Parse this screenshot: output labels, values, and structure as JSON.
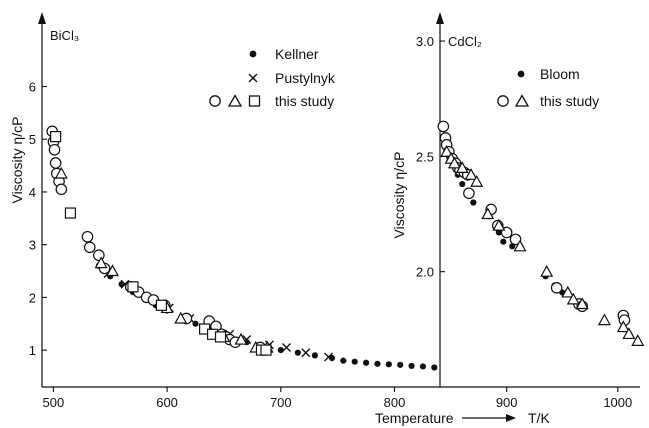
{
  "chart_data": [
    {
      "type": "scatter",
      "panel_label": "BiCl₃",
      "ylabel": "Viscosity  η/cP",
      "xlim": [
        490,
        840
      ],
      "ylim": [
        0.3,
        7.3
      ],
      "x_ticks": [
        500,
        600,
        700,
        800
      ],
      "y_ticks": [
        1,
        2,
        3,
        4,
        5,
        6
      ],
      "legend": {
        "placement": "top-right",
        "entries": [
          {
            "symbols": [
              "dot"
            ],
            "label": "Kellner"
          },
          {
            "symbols": [
              "cross"
            ],
            "label": "Pustylnyk"
          },
          {
            "symbols": [
              "circle",
              "triangle",
              "square"
            ],
            "label": "this study"
          }
        ]
      },
      "series": [
        {
          "name": "Kellner",
          "marker": "dot",
          "points": [
            [
              540,
              2.6
            ],
            [
              550,
              2.4
            ],
            [
              560,
              2.25
            ],
            [
              570,
              2.1
            ],
            [
              580,
              2.0
            ],
            [
              590,
              1.85
            ],
            [
              600,
              1.75
            ],
            [
              615,
              1.6
            ],
            [
              625,
              1.5
            ],
            [
              640,
              1.4
            ],
            [
              650,
              1.3
            ],
            [
              660,
              1.2
            ],
            [
              670,
              1.15
            ],
            [
              685,
              1.05
            ],
            [
              700,
              1.0
            ],
            [
              715,
              0.95
            ],
            [
              730,
              0.9
            ],
            [
              745,
              0.85
            ],
            [
              755,
              0.8
            ],
            [
              765,
              0.78
            ],
            [
              775,
              0.76
            ],
            [
              785,
              0.74
            ],
            [
              795,
              0.73
            ],
            [
              805,
              0.72
            ],
            [
              815,
              0.7
            ],
            [
              825,
              0.69
            ],
            [
              835,
              0.67
            ]
          ]
        },
        {
          "name": "Pustylnyk",
          "marker": "cross",
          "points": [
            [
              548,
              2.45
            ],
            [
              563,
              2.25
            ],
            [
              575,
              2.1
            ],
            [
              588,
              1.95
            ],
            [
              602,
              1.8
            ],
            [
              620,
              1.6
            ],
            [
              640,
              1.4
            ],
            [
              655,
              1.3
            ],
            [
              670,
              1.2
            ],
            [
              690,
              1.1
            ],
            [
              705,
              1.05
            ],
            [
              722,
              0.95
            ],
            [
              742,
              0.87
            ]
          ]
        },
        {
          "name": "this study",
          "marker": "circle",
          "points": [
            [
              499,
              5.15
            ],
            [
              500,
              4.95
            ],
            [
              501,
              4.8
            ],
            [
              502,
              4.55
            ],
            [
              503,
              4.35
            ],
            [
              505,
              4.2
            ],
            [
              507,
              4.05
            ],
            [
              530,
              3.15
            ],
            [
              532,
              2.95
            ],
            [
              540,
              2.8
            ],
            [
              545,
              2.55
            ],
            [
              568,
              2.2
            ],
            [
              575,
              2.1
            ],
            [
              582,
              2.0
            ],
            [
              588,
              1.95
            ],
            [
              598,
              1.85
            ],
            [
              617,
              1.6
            ],
            [
              637,
              1.55
            ],
            [
              643,
              1.45
            ],
            [
              648,
              1.3
            ],
            [
              652,
              1.25
            ],
            [
              655,
              1.2
            ],
            [
              660,
              1.15
            ],
            [
              682,
              1.05
            ]
          ]
        },
        {
          "name": "this study",
          "marker": "triangle",
          "points": [
            [
              507,
              4.35
            ],
            [
              542,
              2.65
            ],
            [
              552,
              2.5
            ],
            [
              600,
              1.8
            ],
            [
              612,
              1.6
            ],
            [
              650,
              1.25
            ],
            [
              665,
              1.2
            ],
            [
              678,
              1.05
            ],
            [
              688,
              1.05
            ]
          ]
        },
        {
          "name": "this study",
          "marker": "square",
          "points": [
            [
              502,
              5.05
            ],
            [
              515,
              3.6
            ],
            [
              570,
              2.2
            ],
            [
              595,
              1.85
            ],
            [
              633,
              1.4
            ],
            [
              640,
              1.3
            ],
            [
              647,
              1.25
            ],
            [
              683,
              1.0
            ],
            [
              687,
              1.0
            ]
          ]
        }
      ]
    },
    {
      "type": "scatter",
      "panel_label": "CdCl₂",
      "ylabel": "Viscosity  η/cP",
      "xlim": [
        840,
        1020
      ],
      "ylim": [
        1.5,
        3.1
      ],
      "x_ticks": [
        900,
        1000
      ],
      "y_ticks": [
        2.0,
        2.5,
        3.0
      ],
      "y_tick_labels": [
        "2.0",
        "2.5",
        "3.0"
      ],
      "legend": {
        "placement": "top-right",
        "entries": [
          {
            "symbols": [
              "dot"
            ],
            "label": "Bloom"
          },
          {
            "symbols": [
              "circle",
              "triangle"
            ],
            "label": "this study"
          }
        ]
      },
      "series": [
        {
          "name": "Bloom",
          "marker": "dot",
          "points": [
            [
              848,
              2.5
            ],
            [
              856,
              2.42
            ],
            [
              860,
              2.38
            ],
            [
              864,
              2.34
            ],
            [
              870,
              2.3
            ],
            [
              884,
              2.24
            ],
            [
              893,
              2.17
            ],
            [
              897,
              2.13
            ],
            [
              905,
              2.11
            ],
            [
              935,
              1.98
            ],
            [
              943,
              1.94
            ],
            [
              950,
              1.91
            ]
          ]
        },
        {
          "name": "this study",
          "marker": "circle",
          "points": [
            [
              843,
              2.63
            ],
            [
              845,
              2.58
            ],
            [
              846,
              2.55
            ],
            [
              848,
              2.52
            ],
            [
              851,
              2.49
            ],
            [
              854,
              2.47
            ],
            [
              856,
              2.45
            ],
            [
              858,
              2.44
            ],
            [
              862,
              2.43
            ],
            [
              865,
              2.42
            ],
            [
              866,
              2.34
            ],
            [
              886,
              2.27
            ],
            [
              892,
              2.2
            ],
            [
              900,
              2.17
            ],
            [
              908,
              2.14
            ],
            [
              945,
              1.93
            ],
            [
              965,
              1.86
            ],
            [
              968,
              1.85
            ],
            [
              1005,
              1.81
            ],
            [
              1006,
              1.79
            ]
          ]
        },
        {
          "name": "this study",
          "marker": "triangle",
          "points": [
            [
              846,
              2.52
            ],
            [
              850,
              2.49
            ],
            [
              853,
              2.47
            ],
            [
              860,
              2.45
            ],
            [
              868,
              2.42
            ],
            [
              873,
              2.39
            ],
            [
              883,
              2.25
            ],
            [
              893,
              2.2
            ],
            [
              912,
              2.11
            ],
            [
              936,
              2.0
            ],
            [
              955,
              1.91
            ],
            [
              960,
              1.88
            ],
            [
              968,
              1.86
            ],
            [
              988,
              1.79
            ],
            [
              1005,
              1.76
            ],
            [
              1010,
              1.73
            ],
            [
              1018,
              1.7
            ]
          ]
        }
      ]
    }
  ],
  "shared_x_axis": {
    "label": "Temperature",
    "symbol": "T/K"
  }
}
